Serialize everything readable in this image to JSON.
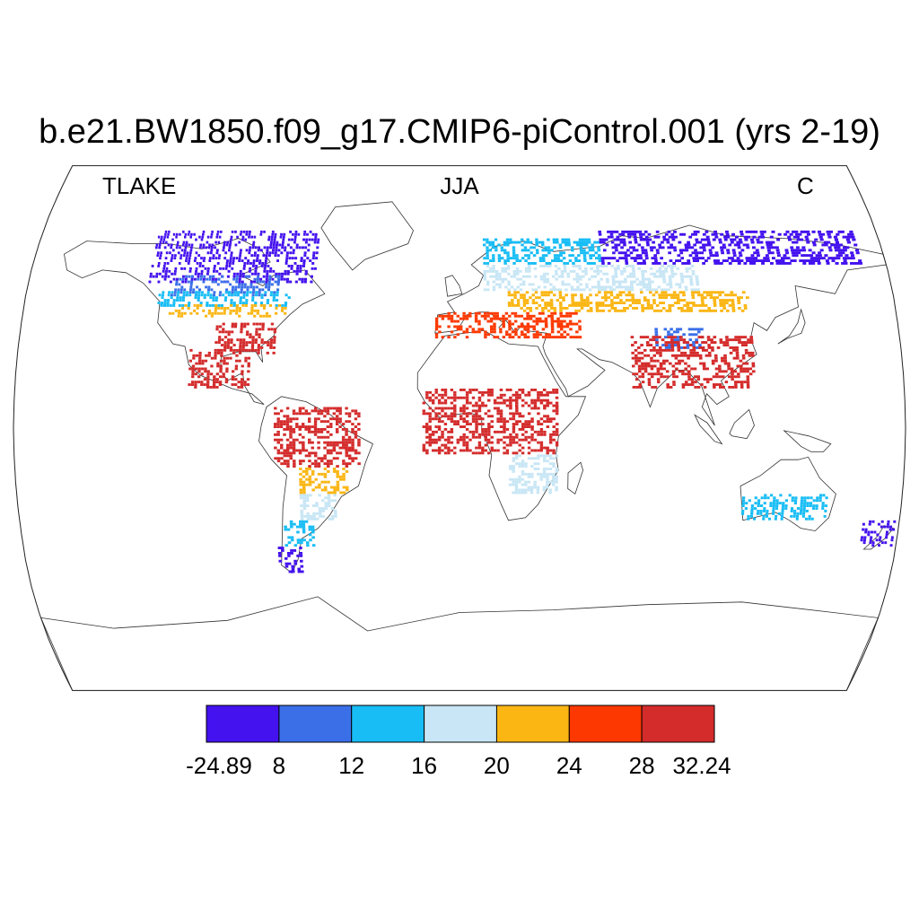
{
  "title": "b.e21.BW1850.f09_g17.CMIP6-piControl.001 (yrs 2-19)",
  "left_label": "TLAKE",
  "center_label": "JJA",
  "right_label": "C",
  "colorbar": {
    "colors": [
      "#4412ee",
      "#3a6fe8",
      "#18bdf5",
      "#c8e6f5",
      "#fbb614",
      "#fd3800",
      "#d42b2b"
    ],
    "labels": [
      "-24.89",
      "8",
      "12",
      "16",
      "20",
      "24",
      "28",
      "32.24"
    ]
  },
  "chart_data": {
    "type": "heatmap",
    "variable": "TLAKE",
    "season": "JJA",
    "units": "C",
    "projection": "Robinson",
    "levels": [
      -24.89,
      8,
      12,
      16,
      20,
      24,
      28,
      32.24
    ],
    "regions": [
      {
        "lon": [
          -130,
          -60
        ],
        "lat": [
          55,
          75
        ],
        "bin": 0
      },
      {
        "lon": [
          -120,
          -75
        ],
        "lat": [
          50,
          58
        ],
        "bin": 1
      },
      {
        "lon": [
          -125,
          -70
        ],
        "lat": [
          46,
          52
        ],
        "bin": 2
      },
      {
        "lon": [
          -120,
          -70
        ],
        "lat": [
          42,
          47
        ],
        "bin": 4
      },
      {
        "lon": [
          -100,
          -75
        ],
        "lat": [
          28,
          40
        ],
        "bin": 6
      },
      {
        "lon": [
          -110,
          -85
        ],
        "lat": [
          15,
          30
        ],
        "bin": 6
      },
      {
        "lon": [
          -75,
          -40
        ],
        "lat": [
          -15,
          8
        ],
        "bin": 6
      },
      {
        "lon": [
          -65,
          -45
        ],
        "lat": [
          -25,
          -15
        ],
        "bin": 4
      },
      {
        "lon": [
          -65,
          -50
        ],
        "lat": [
          -35,
          -25
        ],
        "bin": 3
      },
      {
        "lon": [
          -72,
          -60
        ],
        "lat": [
          -45,
          -35
        ],
        "bin": 2
      },
      {
        "lon": [
          -75,
          -65
        ],
        "lat": [
          -55,
          -45
        ],
        "bin": 0
      },
      {
        "lon": [
          10,
          60
        ],
        "lat": [
          62,
          72
        ],
        "bin": 2
      },
      {
        "lon": [
          60,
          170
        ],
        "lat": [
          62,
          75
        ],
        "bin": 0
      },
      {
        "lon": [
          10,
          100
        ],
        "lat": [
          52,
          62
        ],
        "bin": 3
      },
      {
        "lon": [
          20,
          120
        ],
        "lat": [
          44,
          52
        ],
        "bin": 4
      },
      {
        "lon": [
          -10,
          50
        ],
        "lat": [
          34,
          44
        ],
        "bin": 5
      },
      {
        "lon": [
          80,
          100
        ],
        "lat": [
          30,
          38
        ],
        "bin": 1
      },
      {
        "lon": [
          70,
          120
        ],
        "lat": [
          15,
          35
        ],
        "bin": 6
      },
      {
        "lon": [
          -15,
          40
        ],
        "lat": [
          -10,
          15
        ],
        "bin": 6
      },
      {
        "lon": [
          20,
          40
        ],
        "lat": [
          -25,
          -10
        ],
        "bin": 3
      },
      {
        "lon": [
          115,
          150
        ],
        "lat": [
          -35,
          -25
        ],
        "bin": 2
      },
      {
        "lon": [
          165,
          178
        ],
        "lat": [
          -45,
          -35
        ],
        "bin": 0
      }
    ]
  }
}
